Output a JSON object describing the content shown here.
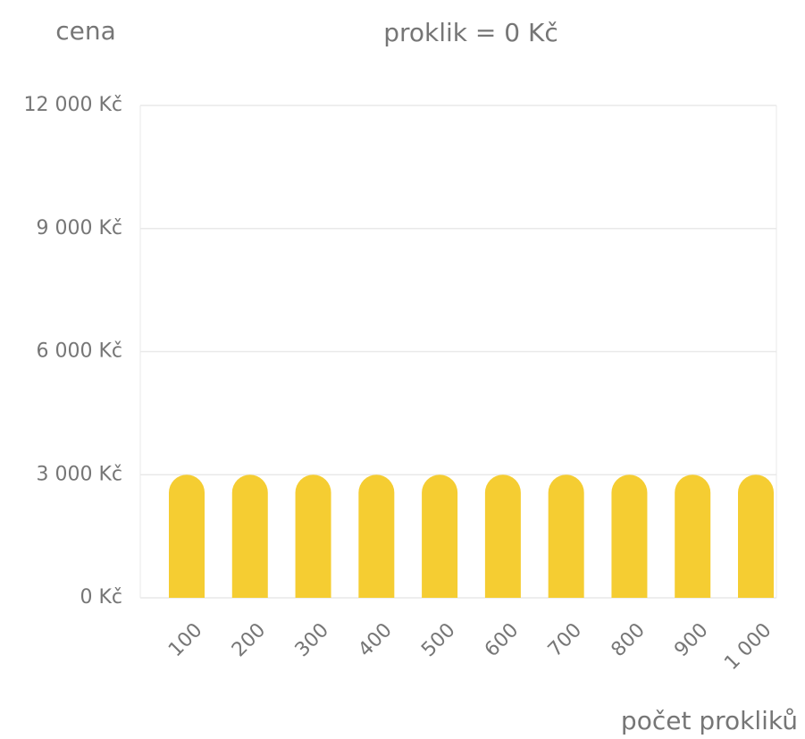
{
  "chart_data": {
    "type": "bar",
    "title": "proklik = 0 Kč",
    "y_label": "cena",
    "x_label": "počet prokliků",
    "categories": [
      "100",
      "200",
      "300",
      "400",
      "500",
      "600",
      "700",
      "800",
      "900",
      "1 000"
    ],
    "values": [
      3000,
      3000,
      3000,
      3000,
      3000,
      3000,
      3000,
      3000,
      3000,
      3000
    ],
    "color": "#f5cd32",
    "ylim": [
      0,
      12000
    ],
    "yticks": [
      {
        "value": 0,
        "label": "0 Kč"
      },
      {
        "value": 3000,
        "label": "3 000 Kč"
      },
      {
        "value": 6000,
        "label": "6 000 Kč"
      },
      {
        "value": 9000,
        "label": "9 000 Kč"
      },
      {
        "value": 12000,
        "label": "12 000 Kč"
      }
    ],
    "grid": true
  }
}
